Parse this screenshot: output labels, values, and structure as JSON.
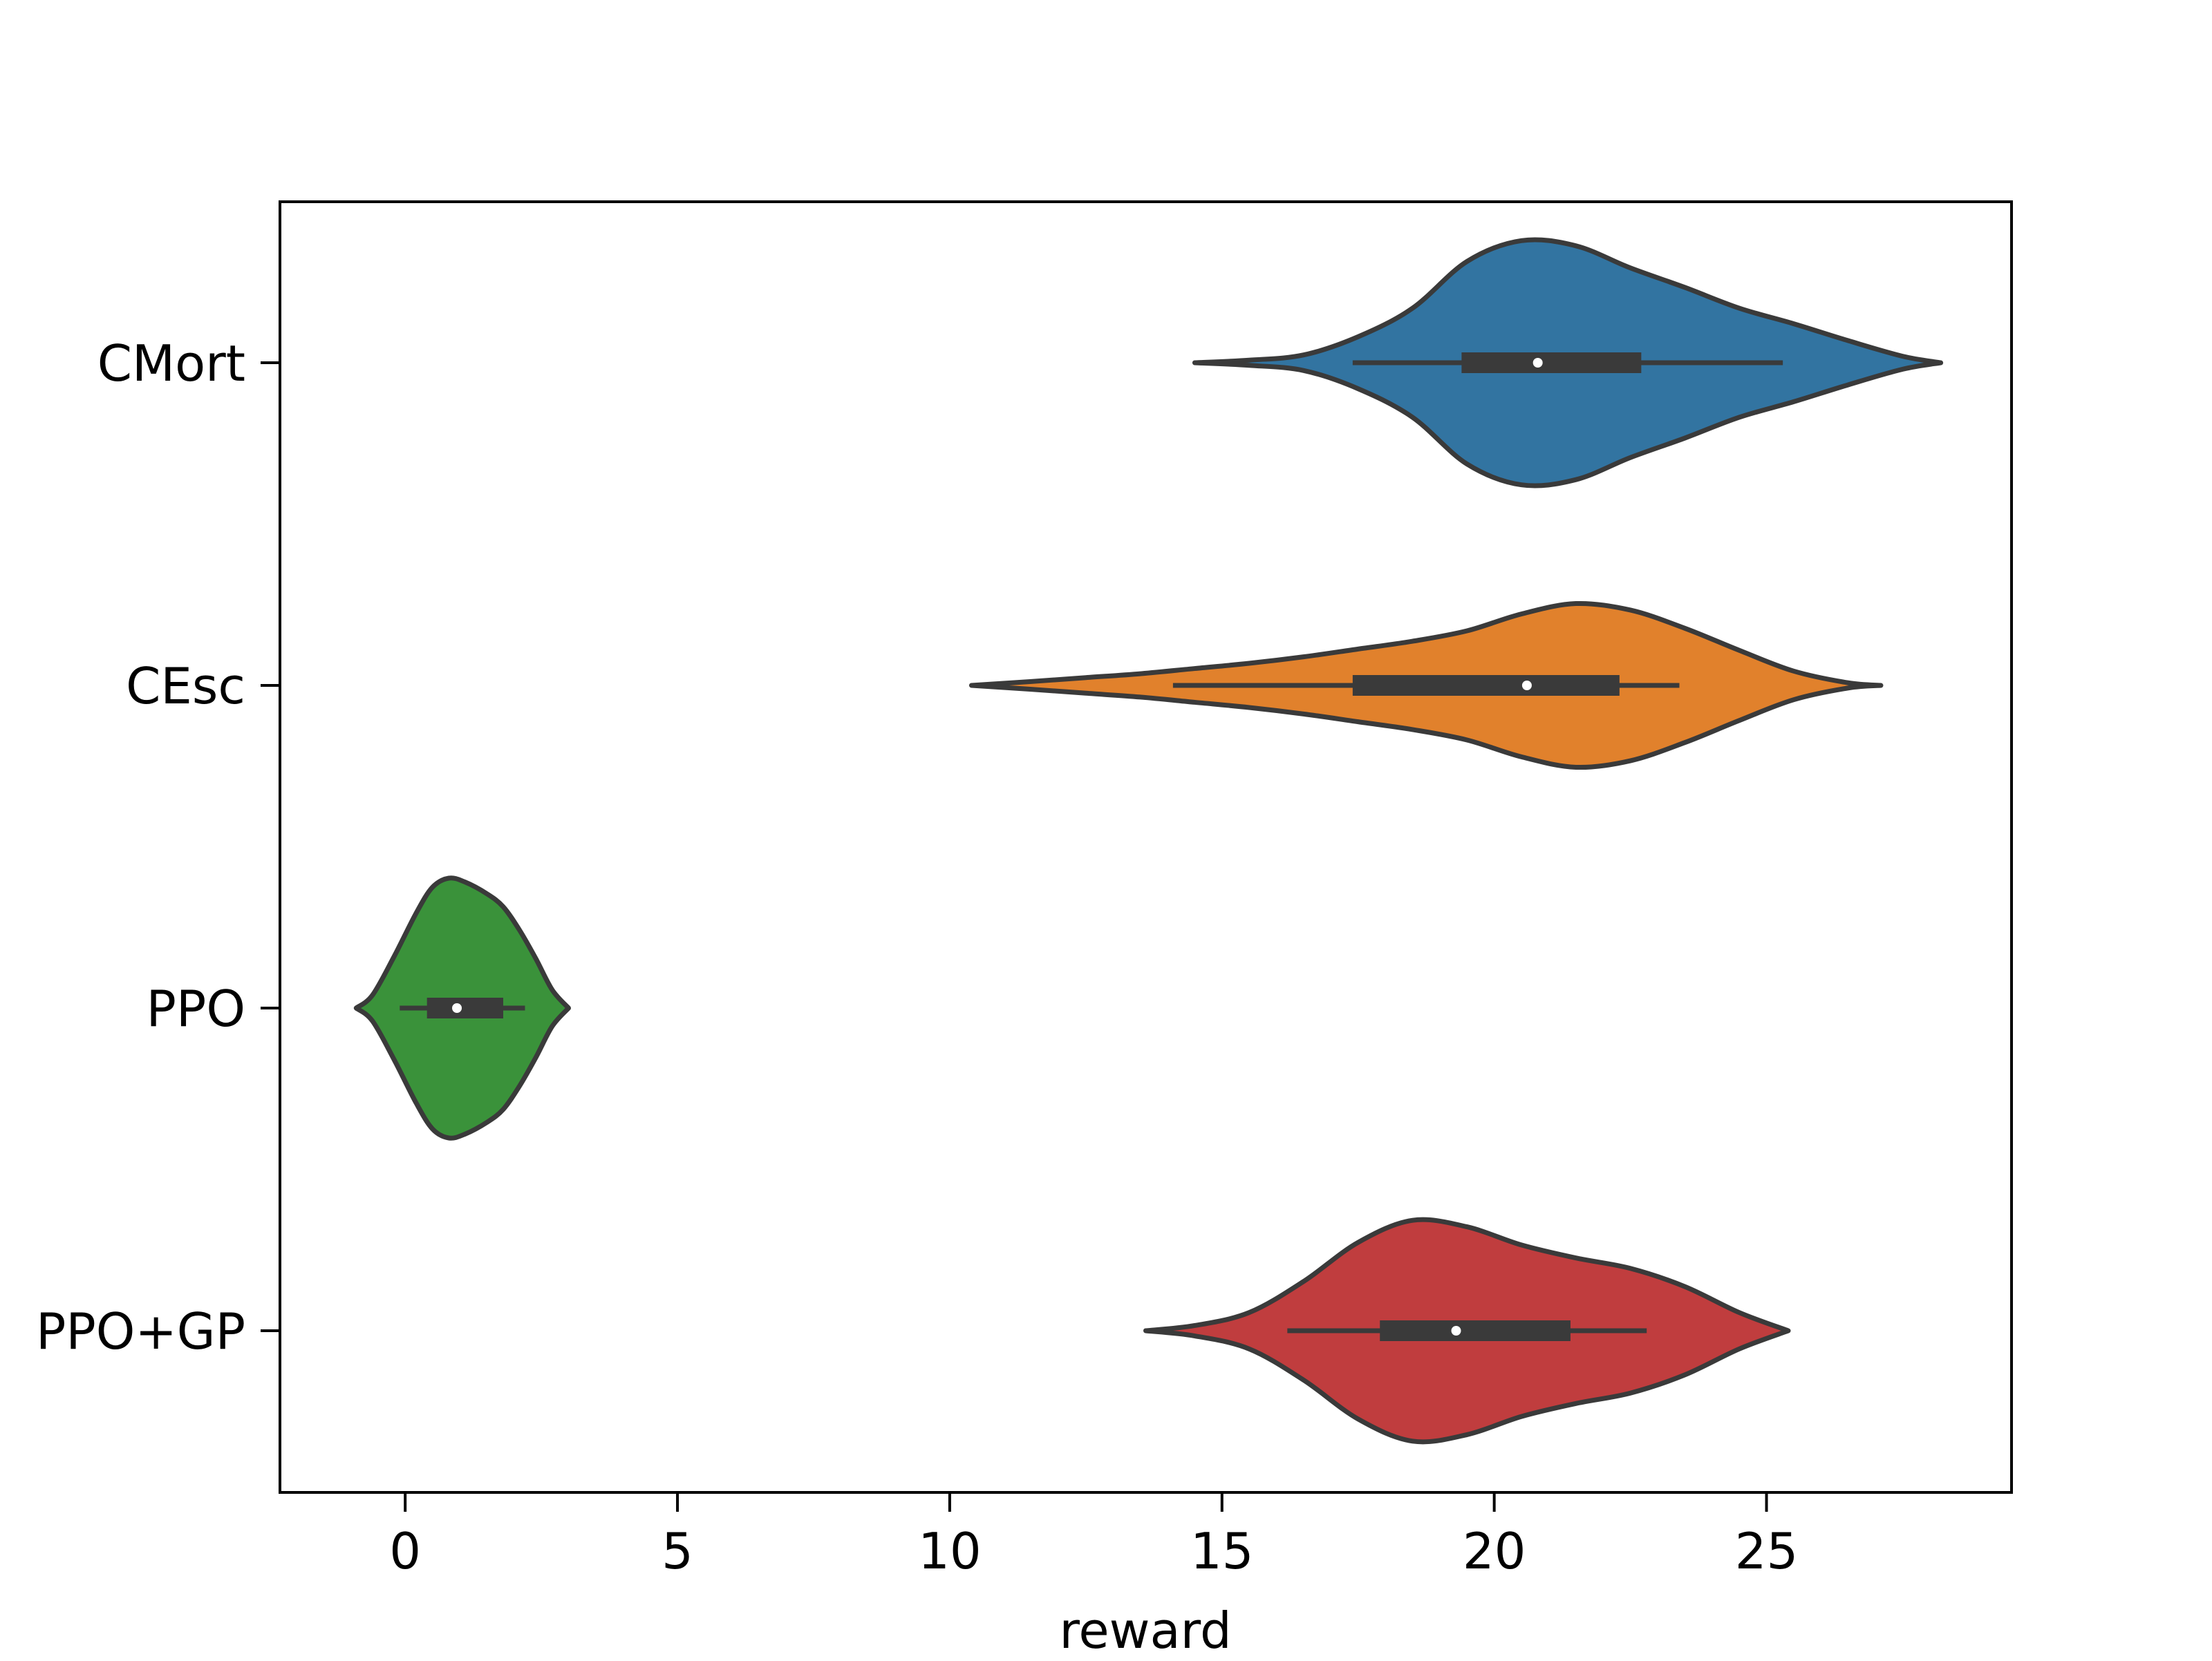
{
  "chart_data": {
    "type": "violin",
    "orientation": "horizontal",
    "title": "",
    "xlabel": "reward",
    "ylabel": "",
    "xlim": [
      -2.3,
      29.5
    ],
    "xticks": [
      0,
      5,
      10,
      15,
      20,
      25
    ],
    "xtick_labels": [
      "0",
      "5",
      "10",
      "15",
      "20",
      "25"
    ],
    "categories": [
      "CMort",
      "CEsc",
      "PPO",
      "PPO+GP"
    ],
    "grid": false,
    "legend": "none",
    "edge_color": "#3a3a3a",
    "series": [
      {
        "category": "CMort",
        "color": "#3274a1",
        "min": 14.5,
        "max": 28.2,
        "whisker_low": 17.4,
        "whisker_high": 25.3,
        "q1": 19.4,
        "median": 20.8,
        "q3": 22.7,
        "density": [
          [
            14.5,
            0.0
          ],
          [
            15.5,
            0.02
          ],
          [
            16.5,
            0.06
          ],
          [
            17.5,
            0.2
          ],
          [
            18.5,
            0.42
          ],
          [
            19.5,
            0.78
          ],
          [
            20.5,
            0.94
          ],
          [
            21.5,
            0.9
          ],
          [
            22.5,
            0.73
          ],
          [
            23.5,
            0.58
          ],
          [
            24.5,
            0.42
          ],
          [
            25.5,
            0.3
          ],
          [
            26.5,
            0.17
          ],
          [
            27.5,
            0.05
          ],
          [
            28.2,
            0.0
          ]
        ]
      },
      {
        "category": "CEsc",
        "color": "#e1812c",
        "min": 10.4,
        "max": 27.1,
        "whisker_low": 14.1,
        "whisker_high": 23.4,
        "q1": 17.4,
        "median": 20.6,
        "q3": 22.3,
        "density": [
          [
            10.4,
            0.0
          ],
          [
            11.5,
            0.03
          ],
          [
            12.5,
            0.06
          ],
          [
            13.5,
            0.09
          ],
          [
            14.5,
            0.13
          ],
          [
            15.5,
            0.17
          ],
          [
            16.5,
            0.22
          ],
          [
            17.5,
            0.28
          ],
          [
            18.5,
            0.34
          ],
          [
            19.5,
            0.42
          ],
          [
            20.5,
            0.55
          ],
          [
            21.5,
            0.63
          ],
          [
            22.5,
            0.58
          ],
          [
            23.5,
            0.44
          ],
          [
            24.5,
            0.27
          ],
          [
            25.5,
            0.11
          ],
          [
            26.5,
            0.02
          ],
          [
            27.1,
            0.0
          ]
        ]
      },
      {
        "category": "PPO",
        "color": "#3a923a",
        "min": -0.9,
        "max": 3.0,
        "whisker_low": -0.1,
        "whisker_high": 2.2,
        "q1": 0.4,
        "median": 0.95,
        "q3": 1.8,
        "density": [
          [
            -0.9,
            0.0
          ],
          [
            -0.6,
            0.1
          ],
          [
            -0.2,
            0.4
          ],
          [
            0.2,
            0.73
          ],
          [
            0.5,
            0.93
          ],
          [
            0.8,
            1.0
          ],
          [
            1.1,
            0.97
          ],
          [
            1.5,
            0.88
          ],
          [
            1.8,
            0.78
          ],
          [
            2.1,
            0.6
          ],
          [
            2.4,
            0.38
          ],
          [
            2.7,
            0.14
          ],
          [
            3.0,
            0.0
          ]
        ]
      },
      {
        "category": "PPO+GP",
        "color": "#c03d3e",
        "min": 13.6,
        "max": 25.4,
        "whisker_low": 16.2,
        "whisker_high": 22.8,
        "q1": 17.9,
        "median": 19.3,
        "q3": 21.4,
        "density": [
          [
            13.6,
            0.0
          ],
          [
            14.5,
            0.04
          ],
          [
            15.5,
            0.14
          ],
          [
            16.5,
            0.38
          ],
          [
            17.5,
            0.68
          ],
          [
            18.5,
            0.85
          ],
          [
            19.5,
            0.8
          ],
          [
            20.5,
            0.66
          ],
          [
            21.5,
            0.56
          ],
          [
            22.5,
            0.48
          ],
          [
            23.5,
            0.34
          ],
          [
            24.5,
            0.14
          ],
          [
            25.4,
            0.0
          ]
        ]
      }
    ]
  }
}
